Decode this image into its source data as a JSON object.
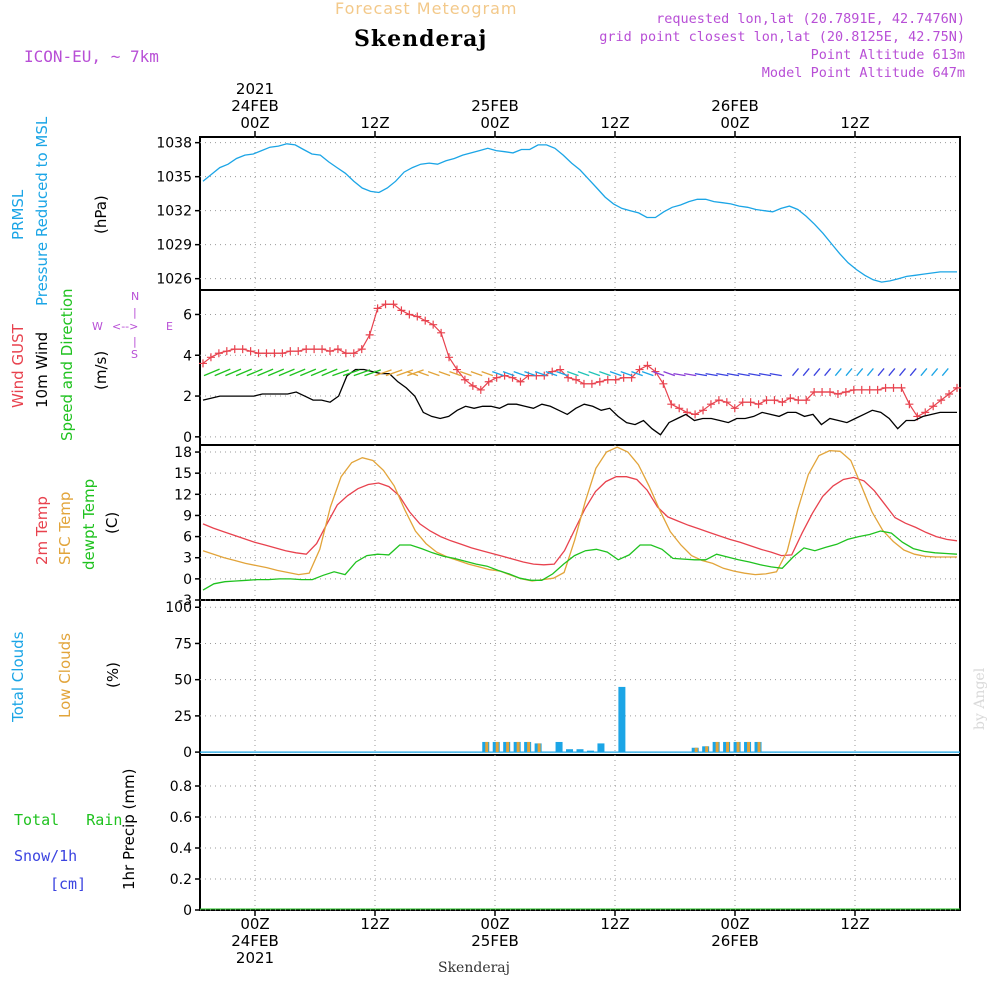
{
  "header": {
    "product": "Forecast Meteogram",
    "location": "Skenderaj",
    "model": "ICON-EU, ~ 7km",
    "info_lines": [
      "requested lon,lat (20.7891E, 42.7476N)",
      "grid point closest lon,lat (20.8125E, 42.75N)",
      "Point Altitude 613m",
      "Model Point Altitude 647m"
    ],
    "footer_location": "Skenderaj",
    "watermark": "by Angel"
  },
  "time_axis": {
    "top_labels": [
      {
        "h": 0,
        "lines": [
          "2021",
          "24FEB",
          "00Z"
        ]
      },
      {
        "h": 12,
        "lines": [
          "12Z"
        ]
      },
      {
        "h": 24,
        "lines": [
          "25FEB",
          "00Z"
        ]
      },
      {
        "h": 36,
        "lines": [
          "12Z"
        ]
      },
      {
        "h": 48,
        "lines": [
          "26FEB",
          "00Z"
        ]
      },
      {
        "h": 60,
        "lines": [
          "12Z"
        ]
      }
    ],
    "bottom_labels": [
      {
        "h": 0,
        "lines": [
          "00Z",
          "24FEB",
          "2021"
        ]
      },
      {
        "h": 12,
        "lines": [
          "12Z"
        ]
      },
      {
        "h": 24,
        "lines": [
          "00Z",
          "25FEB"
        ]
      },
      {
        "h": 36,
        "lines": [
          "12Z"
        ]
      },
      {
        "h": 48,
        "lines": [
          "00Z",
          "26FEB"
        ]
      },
      {
        "h": 60,
        "lines": [
          "12Z"
        ]
      }
    ]
  },
  "colors": {
    "pressure": "#1ba5e6",
    "gust": "#e8424e",
    "wind": "#000000",
    "dir": "#1fc21f",
    "t2m": "#e8424e",
    "sfc": "#e2a43a",
    "dewpt": "#1fc21f",
    "total_clouds": "#1ba5e6",
    "low_clouds": "#e2a43a",
    "rain": "#1fc21f",
    "snow": "#3b43e0",
    "info": "#b84fd6",
    "product": "#f3c98a",
    "grid": "#9a9a9a"
  },
  "chart_data": [
    {
      "type": "line",
      "panel": "pressure",
      "ylabel_lines": [
        "PRMSL",
        "Pressure Reduced to MSL"
      ],
      "unit": "(hPa)",
      "ylim": [
        1025,
        1038.5
      ],
      "yticks": [
        1026,
        1029,
        1032,
        1035,
        1038
      ],
      "grid": true,
      "series": [
        {
          "key": "prmsl",
          "values": [
            1034.6,
            1035.2,
            1035.8,
            1036.1,
            1036.6,
            1036.9,
            1037.0,
            1037.3,
            1037.6,
            1037.7,
            1037.9,
            1037.8,
            1037.4,
            1037.0,
            1036.9,
            1036.3,
            1035.8,
            1035.3,
            1034.6,
            1034.0,
            1033.7,
            1033.6,
            1034.0,
            1034.6,
            1035.4,
            1035.8,
            1036.1,
            1036.2,
            1036.1,
            1036.4,
            1036.6,
            1036.9,
            1037.1,
            1037.3,
            1037.5,
            1037.3,
            1037.2,
            1037.1,
            1037.4,
            1037.4,
            1037.8,
            1037.8,
            1037.5,
            1036.9,
            1036.2,
            1035.6,
            1034.8,
            1034.0,
            1033.2,
            1032.6,
            1032.2,
            1032.0,
            1031.8,
            1031.4,
            1031.4,
            1031.9,
            1032.3,
            1032.5,
            1032.8,
            1033.0,
            1033.0,
            1032.8,
            1032.7,
            1032.6,
            1032.4,
            1032.3,
            1032.1,
            1032.0,
            1031.9,
            1032.2,
            1032.4,
            1032.1,
            1031.5,
            1030.8,
            1030.0,
            1029.1,
            1028.2,
            1027.4,
            1026.8,
            1026.3,
            1025.9,
            1025.7,
            1025.8,
            1026.0,
            1026.2,
            1026.3,
            1026.4,
            1026.5,
            1026.6,
            1026.6,
            1026.6
          ]
        }
      ]
    },
    {
      "type": "line",
      "panel": "wind",
      "ylabel_lines": [
        "Wind GUST",
        "10m Wind",
        "Speed and Direction"
      ],
      "unit": "(m/s)",
      "compass": {
        "n": "N",
        "s": "S",
        "w": "W",
        "e": "E"
      },
      "ylim": [
        -0.4,
        7.2
      ],
      "yticks": [
        0,
        2,
        4,
        6
      ],
      "grid": true,
      "series": [
        {
          "key": "gust",
          "marker": "+",
          "values": [
            3.6,
            3.9,
            4.1,
            4.2,
            4.3,
            4.3,
            4.2,
            4.1,
            4.1,
            4.1,
            4.1,
            4.2,
            4.2,
            4.3,
            4.3,
            4.3,
            4.2,
            4.3,
            4.1,
            4.1,
            4.3,
            5.0,
            6.3,
            6.5,
            6.5,
            6.2,
            6.0,
            5.9,
            5.7,
            5.5,
            5.1,
            3.9,
            3.3,
            2.8,
            2.5,
            2.3,
            2.7,
            2.9,
            3.0,
            2.9,
            2.7,
            3.0,
            3.0,
            3.0,
            3.2,
            3.3,
            2.9,
            2.8,
            2.6,
            2.6,
            2.7,
            2.8,
            2.8,
            2.9,
            2.9,
            3.3,
            3.5,
            3.2,
            2.6,
            1.6,
            1.4,
            1.2,
            1.1,
            1.3,
            1.6,
            1.8,
            1.7,
            1.4,
            1.7,
            1.7,
            1.6,
            1.8,
            1.8,
            1.7,
            1.9,
            1.8,
            1.8,
            2.2,
            2.2,
            2.2,
            2.1,
            2.2,
            2.3,
            2.3,
            2.3,
            2.3,
            2.4,
            2.4,
            2.4,
            1.6,
            1.0,
            1.2,
            1.5,
            1.8,
            2.1,
            2.4
          ]
        },
        {
          "key": "wind10m",
          "values": [
            1.8,
            1.9,
            2.0,
            2.0,
            2.0,
            2.0,
            2.0,
            2.1,
            2.1,
            2.1,
            2.1,
            2.2,
            2.0,
            1.8,
            1.8,
            1.7,
            2.0,
            3.0,
            3.3,
            3.3,
            3.2,
            3.1,
            3.1,
            2.7,
            2.4,
            2.0,
            1.2,
            1.0,
            0.9,
            1.0,
            1.3,
            1.5,
            1.4,
            1.5,
            1.5,
            1.4,
            1.6,
            1.6,
            1.5,
            1.4,
            1.6,
            1.5,
            1.3,
            1.1,
            1.4,
            1.6,
            1.5,
            1.3,
            1.4,
            1.0,
            0.7,
            0.6,
            0.8,
            0.4,
            0.1,
            0.7,
            0.9,
            1.1,
            0.8,
            0.9,
            0.9,
            0.8,
            0.7,
            0.9,
            0.9,
            1.0,
            1.2,
            1.1,
            1.0,
            1.2,
            1.2,
            1.0,
            1.1,
            0.6,
            0.9,
            0.8,
            0.7,
            0.9,
            1.1,
            1.3,
            1.2,
            0.9,
            0.4,
            0.8,
            0.8,
            1.0,
            1.1,
            1.2,
            1.2,
            1.2
          ]
        },
        {
          "key": "direction",
          "barb_color_changes": [
            "green",
            "orange",
            "cyan",
            "blue",
            "purple"
          ]
        }
      ]
    },
    {
      "type": "line",
      "panel": "temperature",
      "ylabel_lines": [
        "2m Temp",
        "SFC Temp",
        "dewpt Temp"
      ],
      "unit": "(C)",
      "ylim": [
        -3,
        19
      ],
      "yticks": [
        -3,
        0,
        3,
        6,
        9,
        12,
        15,
        18
      ],
      "grid": true,
      "series": [
        {
          "key": "t2m",
          "values": [
            7.8,
            7.2,
            6.7,
            6.2,
            5.7,
            5.2,
            4.8,
            4.4,
            4.0,
            3.7,
            3.5,
            5.0,
            7.8,
            10.5,
            11.8,
            12.8,
            13.4,
            13.6,
            13.1,
            11.8,
            9.5,
            7.8,
            6.8,
            6.0,
            5.4,
            4.9,
            4.4,
            4.0,
            3.6,
            3.2,
            2.8,
            2.4,
            2.1,
            2.0,
            2.1,
            4.0,
            7.0,
            10.0,
            12.4,
            13.8,
            14.5,
            14.5,
            14.1,
            12.6,
            10.2,
            8.8,
            8.2,
            7.6,
            7.1,
            6.6,
            6.1,
            5.6,
            5.2,
            4.7,
            4.2,
            3.8,
            3.3,
            3.4,
            6.5,
            9.3,
            11.7,
            13.2,
            14.1,
            14.4,
            13.9,
            12.5,
            10.6,
            8.7,
            7.9,
            7.3,
            6.6,
            6.0,
            5.6,
            5.4
          ]
        },
        {
          "key": "sfc",
          "values": [
            4.0,
            3.5,
            3.0,
            2.6,
            2.2,
            1.9,
            1.6,
            1.2,
            0.9,
            0.6,
            0.8,
            4.2,
            10.2,
            14.5,
            16.5,
            17.2,
            16.8,
            15.4,
            13.2,
            9.8,
            6.8,
            5.0,
            3.8,
            3.1,
            2.6,
            2.1,
            1.7,
            1.3,
            1.1,
            0.5,
            0.0,
            -0.3,
            -0.1,
            0.1,
            0.9,
            5.5,
            11.0,
            15.7,
            18.0,
            18.7,
            18.0,
            16.2,
            13.2,
            9.8,
            6.7,
            4.8,
            3.3,
            2.6,
            2.2,
            1.5,
            1.1,
            0.8,
            0.6,
            0.7,
            1.0,
            3.9,
            9.8,
            14.8,
            17.5,
            18.2,
            18.1,
            16.8,
            13.2,
            9.5,
            6.9,
            5.3,
            4.1,
            3.5,
            3.2,
            3.1,
            3.1,
            3.1
          ]
        },
        {
          "key": "dewpt",
          "values": [
            -1.6,
            -0.7,
            -0.4,
            -0.3,
            -0.2,
            -0.1,
            -0.1,
            0.0,
            0.0,
            -0.1,
            -0.1,
            0.5,
            1.0,
            0.6,
            2.4,
            3.3,
            3.5,
            3.4,
            4.8,
            4.8,
            4.3,
            3.7,
            3.2,
            2.9,
            2.5,
            2.1,
            1.8,
            1.2,
            0.7,
            0.1,
            -0.2,
            -0.2,
            0.7,
            2.1,
            3.3,
            4.0,
            4.2,
            3.8,
            2.7,
            3.4,
            4.8,
            4.8,
            4.2,
            2.9,
            2.8,
            2.7,
            2.7,
            3.5,
            3.1,
            2.7,
            2.4,
            2.0,
            1.7,
            1.5,
            3.1,
            4.4,
            4.0,
            4.5,
            4.9,
            5.6,
            6.0,
            6.3,
            6.8,
            6.5,
            5.2,
            4.3,
            3.9,
            3.7,
            3.6,
            3.5
          ]
        }
      ]
    },
    {
      "type": "bar",
      "panel": "clouds",
      "ylabel_lines": [
        "Total Clouds",
        "Low Clouds"
      ],
      "unit": "(%)",
      "ylim": [
        -2,
        105
      ],
      "yticks": [
        0,
        25,
        50,
        75,
        100
      ],
      "grid": true,
      "series": [
        {
          "key": "total",
          "points": [
            [
              27,
              7
            ],
            [
              28,
              7
            ],
            [
              29,
              7
            ],
            [
              30,
              7
            ],
            [
              31,
              7
            ],
            [
              32,
              6
            ],
            [
              34,
              7
            ],
            [
              35,
              2
            ],
            [
              36,
              2
            ],
            [
              37,
              1
            ],
            [
              38,
              6
            ],
            [
              40,
              45
            ],
            [
              47,
              3
            ],
            [
              48,
              4
            ],
            [
              49,
              7
            ],
            [
              50,
              7
            ],
            [
              51,
              7
            ],
            [
              52,
              7
            ],
            [
              53,
              7
            ]
          ]
        },
        {
          "key": "low",
          "points": [
            [
              27,
              7
            ],
            [
              28,
              7
            ],
            [
              29,
              7
            ],
            [
              30,
              7
            ],
            [
              31,
              7
            ],
            [
              32,
              6
            ],
            [
              47,
              3
            ],
            [
              48,
              4
            ],
            [
              49,
              7
            ],
            [
              50,
              7
            ],
            [
              51,
              7
            ],
            [
              52,
              7
            ],
            [
              53,
              7
            ]
          ]
        }
      ]
    },
    {
      "type": "bar",
      "panel": "precip",
      "ylabel_lines": [
        "Total   Rain",
        "Snow/1h",
        "[cm]"
      ],
      "unit": "1hr Precip (mm)",
      "ylim": [
        0,
        1.0
      ],
      "yticks": [
        0,
        0.2,
        0.4,
        0.6,
        0.8
      ],
      "grid": true,
      "series": [
        {
          "key": "rain",
          "points": []
        },
        {
          "key": "snow",
          "points": []
        }
      ]
    }
  ]
}
